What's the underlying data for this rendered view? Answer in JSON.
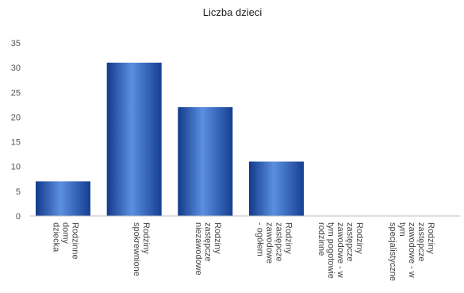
{
  "chart_data": {
    "type": "bar",
    "title": "Liczba dzieci",
    "xlabel": "",
    "ylabel": "",
    "ylim": [
      0,
      35
    ],
    "yticks": [
      "0",
      "5",
      "10",
      "15",
      "20",
      "25",
      "30",
      "35"
    ],
    "grid": false,
    "legend": "none",
    "categories": [
      "Rodzinne domy dziecka",
      "Rodziny spokrewnione",
      "Rodziny zastępcze niezawodowe",
      "Rodziny zastępcze zawodowe - ogółem",
      "Rodziny zastępcze zawodowe - w tym pogotowie rodzinne",
      "Rodziny zastępcze zawodowe - w tym specjalistyczne"
    ],
    "category_lines": [
      [
        "Rodzinne",
        "domy",
        "dziecka"
      ],
      [
        "Rodziny",
        "spokrewnione"
      ],
      [
        "Rodziny",
        "zastępcze",
        "niezawodowe"
      ],
      [
        "Rodziny",
        "zastępcze",
        "zawodowe",
        "- ogółem"
      ],
      [
        "Rodziny",
        "zastępcze",
        "zawodowe - w",
        "tym pogotowie",
        "rodzinne"
      ],
      [
        "Rodziny",
        "zastępcze",
        "zawodowe - w",
        "tym",
        "specjalistyczne"
      ]
    ],
    "values": [
      7,
      31,
      22,
      11,
      0,
      0
    ],
    "colors": {
      "bar_dark": "#123a8a",
      "bar_mid": "#2f67c8",
      "bar_light": "#5b8fe0",
      "axis": "#bdbdbd",
      "title": "#222222",
      "tick": "#555555"
    }
  }
}
